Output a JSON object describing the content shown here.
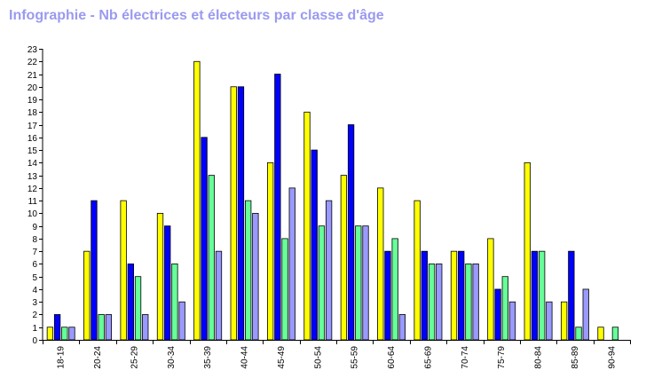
{
  "chart_data": {
    "type": "bar",
    "title": "Infographie - Nb électrices et électeurs par classe d'âge",
    "xlabel": "",
    "ylabel": "",
    "ylim": [
      0,
      23
    ],
    "grid": false,
    "legend": "none",
    "categories": [
      "18-19",
      "20-24",
      "25-29",
      "30-34",
      "35-39",
      "40-44",
      "45-49",
      "50-54",
      "55-59",
      "60-64",
      "65-69",
      "70-74",
      "75-79",
      "80-84",
      "85-89",
      "90-94"
    ],
    "series": [
      {
        "color": "#ffff00",
        "values": [
          1,
          7,
          11,
          10,
          22,
          20,
          14,
          18,
          13,
          12,
          11,
          7,
          8,
          14,
          3,
          1
        ]
      },
      {
        "color": "#0000ff",
        "values": [
          2,
          11,
          6,
          9,
          16,
          20,
          21,
          15,
          17,
          7,
          7,
          7,
          4,
          7,
          7,
          0
        ]
      },
      {
        "color": "#66ff99",
        "values": [
          1,
          2,
          5,
          6,
          13,
          11,
          8,
          9,
          9,
          8,
          6,
          6,
          5,
          7,
          1,
          1
        ]
      },
      {
        "color": "#9999ff",
        "values": [
          1,
          2,
          2,
          3,
          7,
          10,
          12,
          11,
          9,
          2,
          6,
          6,
          3,
          3,
          4,
          0
        ]
      }
    ]
  }
}
